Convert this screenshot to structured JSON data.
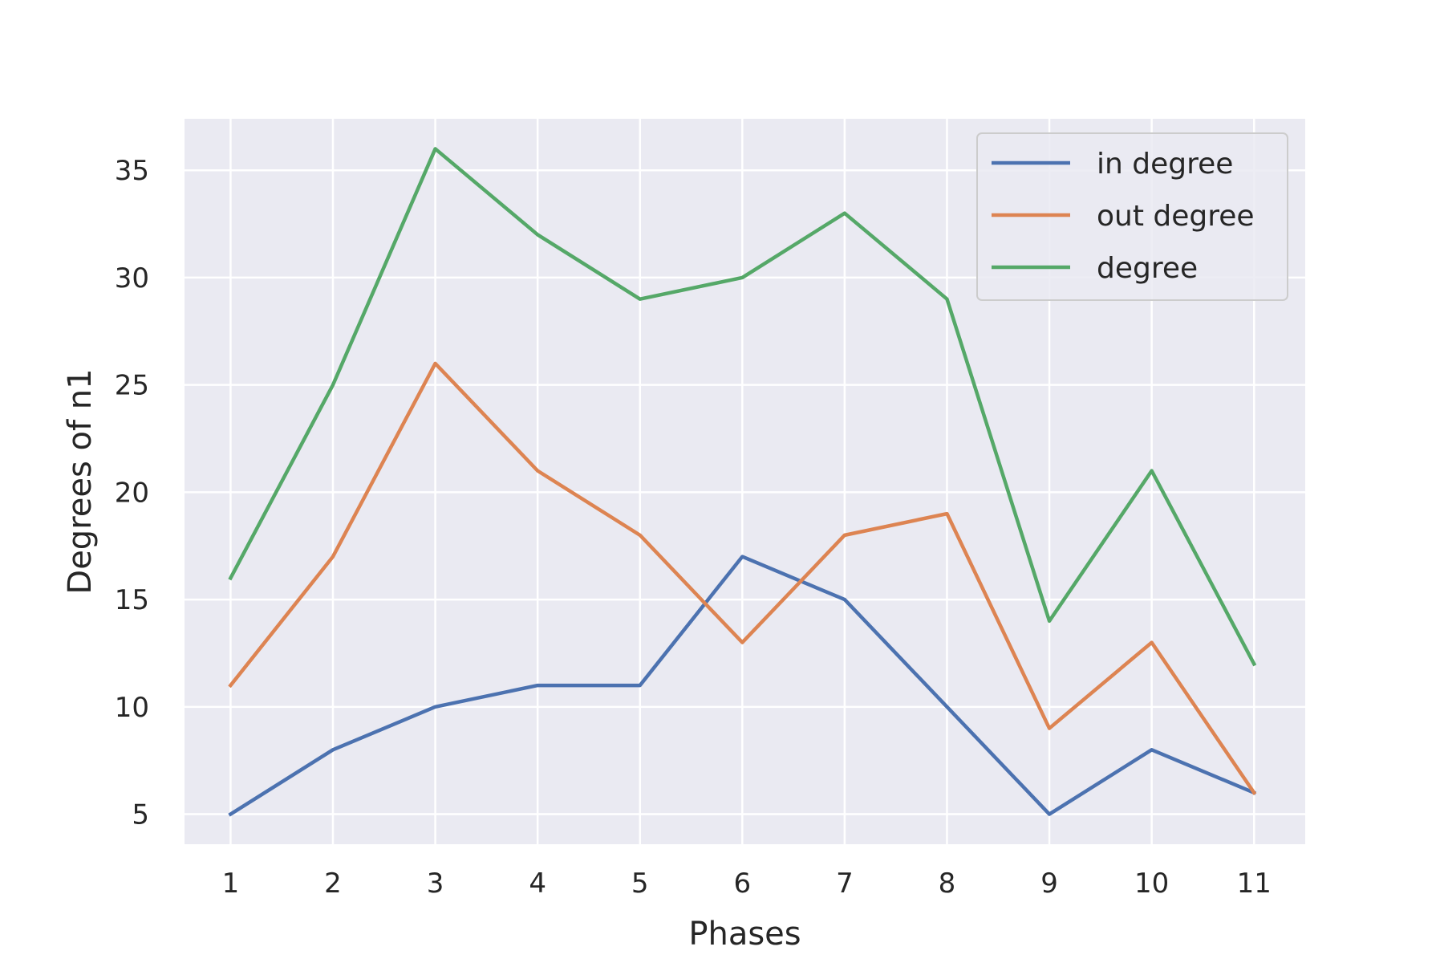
{
  "chart_data": {
    "type": "line",
    "x": [
      1,
      2,
      3,
      4,
      5,
      6,
      7,
      8,
      9,
      10,
      11
    ],
    "series": [
      {
        "name": "in degree",
        "color": "#4c72b0",
        "values": [
          5,
          8,
          10,
          11,
          11,
          17,
          15,
          10,
          5,
          8,
          6
        ]
      },
      {
        "name": "out degree",
        "color": "#dd8452",
        "values": [
          11,
          17,
          26,
          21,
          18,
          13,
          18,
          19,
          9,
          13,
          6
        ]
      },
      {
        "name": "degree",
        "color": "#55a868",
        "values": [
          16,
          25,
          36,
          32,
          29,
          30,
          33,
          29,
          14,
          21,
          12
        ]
      }
    ],
    "xlabel": "Phases",
    "ylabel": "Degrees of n1",
    "xlim": [
      0.55,
      11.5
    ],
    "ylim": [
      3.6,
      37.4
    ],
    "xticks": [
      "1",
      "2",
      "3",
      "4",
      "5",
      "6",
      "7",
      "8",
      "9",
      "10",
      "11"
    ],
    "yticks": [
      5,
      10,
      15,
      20,
      25,
      30,
      35
    ],
    "grid": true,
    "legend_position": "top-right",
    "background": "#eaeaf2"
  }
}
